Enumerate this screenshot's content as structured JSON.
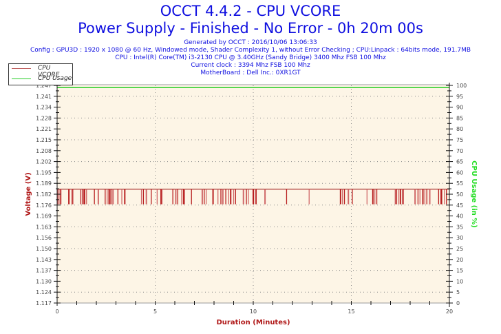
{
  "header": {
    "title": "OCCT 4.4.2 - CPU VCORE",
    "subtitle": "Power Supply - Finished - No Error - 0h 20m 00s",
    "info_lines": [
      "Generated by OCCT : 2016/10/06 13:06:33",
      "Config : GPU3D : 1920 x 1080 @ 60 Hz, Windowed mode, Shader Complexity 1, without Error Checking ; CPU:Linpack : 64bits mode, 191.7MB",
      "CPU : Intel(R) Core(TM) i3-2130 CPU @ 3.40GHz (Sandy Bridge) 3400 Mhz FSB 100 Mhz",
      "Current clock : 3394 Mhz FSB 100 Mhz",
      "MotherBoard : Dell Inc.: 0XR1GT"
    ]
  },
  "legend": {
    "items": [
      {
        "label": "CPU VCORE",
        "color": "#a01818"
      },
      {
        "label": "CPU Usage",
        "color": "#22cc22"
      }
    ]
  },
  "colors": {
    "title": "#1010e0",
    "plot_bg": "#fdf5e6",
    "vcore": "#a01818",
    "usage": "#22cc22",
    "axis_label_left": "#b01818",
    "axis_label_right": "#22dd22"
  },
  "chart_data": {
    "type": "line",
    "title": "OCCT 4.4.2 - CPU VCORE",
    "subtitle": "Power Supply - Finished - No Error - 0h 20m 00s",
    "xlabel": "Duration (Minutes)",
    "ylabel": "Voltage (V)",
    "y2label": "CPU Usage (in %)",
    "xlim": [
      0,
      20
    ],
    "ylim": [
      1.117,
      1.247
    ],
    "y2lim": [
      0,
      100
    ],
    "x_ticks": [
      "0",
      "5",
      "10",
      "15",
      "20"
    ],
    "y_ticks": [
      "1.117",
      "1.124",
      "1.130",
      "1.137",
      "1.143",
      "1.150",
      "1.156",
      "1.163",
      "1.169",
      "1.176",
      "1.182",
      "1.189",
      "1.195",
      "1.202",
      "1.208",
      "1.215",
      "1.221",
      "1.228",
      "1.234",
      "1.241",
      "1.247"
    ],
    "y2_ticks": [
      "0",
      "5",
      "10",
      "15",
      "20",
      "25",
      "30",
      "35",
      "40",
      "45",
      "50",
      "55",
      "60",
      "65",
      "70",
      "75",
      "80",
      "85",
      "90",
      "95",
      "100"
    ],
    "grid": true,
    "legend_position": "top-left",
    "series": [
      {
        "name": "CPU VCORE",
        "axis": "left",
        "baseline_value": 1.185,
        "dip_value": 1.176,
        "dip_minutes": [
          0.05,
          0.15,
          0.2,
          0.6,
          0.75,
          0.8,
          1.2,
          1.3,
          1.35,
          1.4,
          1.5,
          1.9,
          2.1,
          2.45,
          2.55,
          2.65,
          2.7,
          2.75,
          2.85,
          3.1,
          3.3,
          3.45,
          4.3,
          4.4,
          4.55,
          4.8,
          5.1,
          5.3,
          5.35,
          5.9,
          6.05,
          6.15,
          6.35,
          6.45,
          6.5,
          6.85,
          7.4,
          7.5,
          7.6,
          7.95,
          8.2,
          8.35,
          8.45,
          8.6,
          8.75,
          8.85,
          9.0,
          9.1,
          9.5,
          9.65,
          9.75,
          10.0,
          10.1,
          10.15,
          10.6,
          11.7,
          12.85,
          14.45,
          14.55,
          14.65,
          14.85,
          15.05,
          15.8,
          16.1,
          16.2,
          16.3,
          17.25,
          17.3,
          17.4,
          17.5,
          17.6,
          17.65,
          18.25,
          18.4,
          18.5,
          18.65,
          18.75,
          18.85,
          19.0,
          19.45,
          19.55,
          19.6,
          19.75,
          19.85
        ]
      },
      {
        "name": "CPU Usage",
        "axis": "right",
        "values_constant": 99
      }
    ]
  }
}
